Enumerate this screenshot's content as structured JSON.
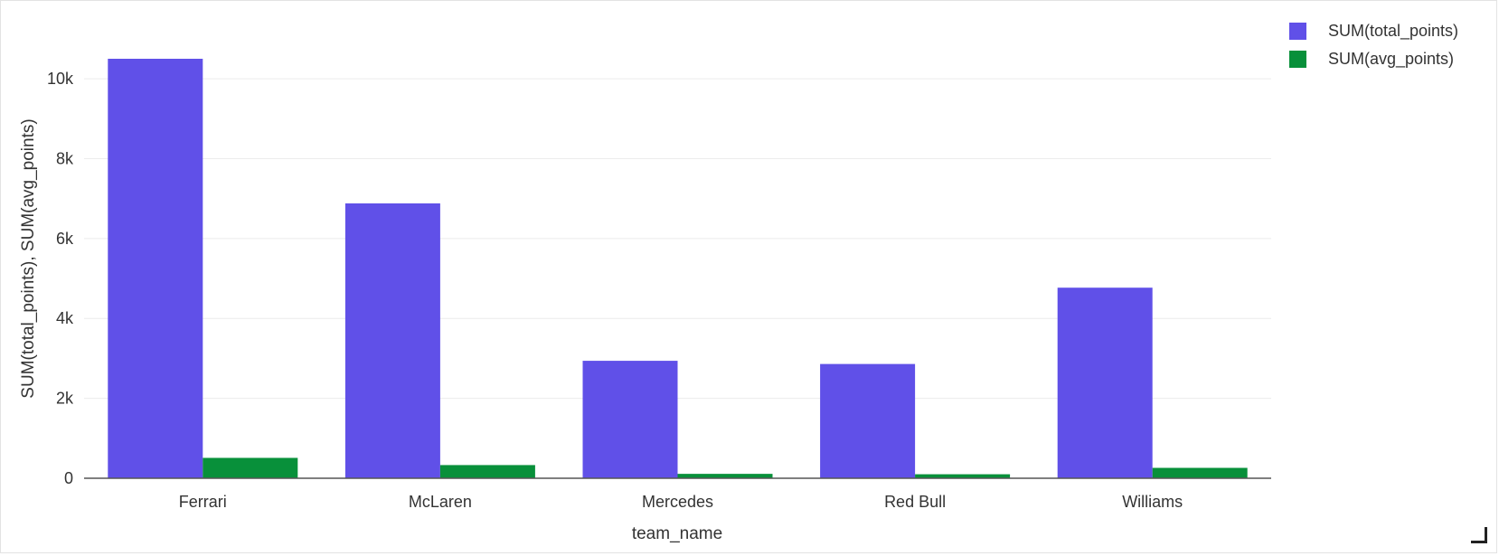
{
  "colors": {
    "series_0": "#6050e8",
    "series_1": "#08903a",
    "grid": "#ececec",
    "axis": "#555555",
    "text": "#333333"
  },
  "chart_data": {
    "type": "bar",
    "xlabel": "team_name",
    "ylabel": "SUM(total_points), SUM(avg_points)",
    "categories": [
      "Ferrari",
      "McLaren",
      "Mercedes",
      "Red Bull",
      "Williams"
    ],
    "series": [
      {
        "name": "SUM(total_points)",
        "values": [
          10500,
          6880,
          2940,
          2860,
          4770
        ]
      },
      {
        "name": "SUM(avg_points)",
        "values": [
          510,
          330,
          110,
          100,
          260
        ]
      }
    ],
    "ylim": [
      0,
      10500
    ],
    "yticks": [
      0,
      2000,
      4000,
      6000,
      8000,
      10000
    ],
    "ytick_labels": [
      "0",
      "2k",
      "4k",
      "6k",
      "8k",
      "10k"
    ],
    "grid": true,
    "legend_position": "top-right"
  }
}
